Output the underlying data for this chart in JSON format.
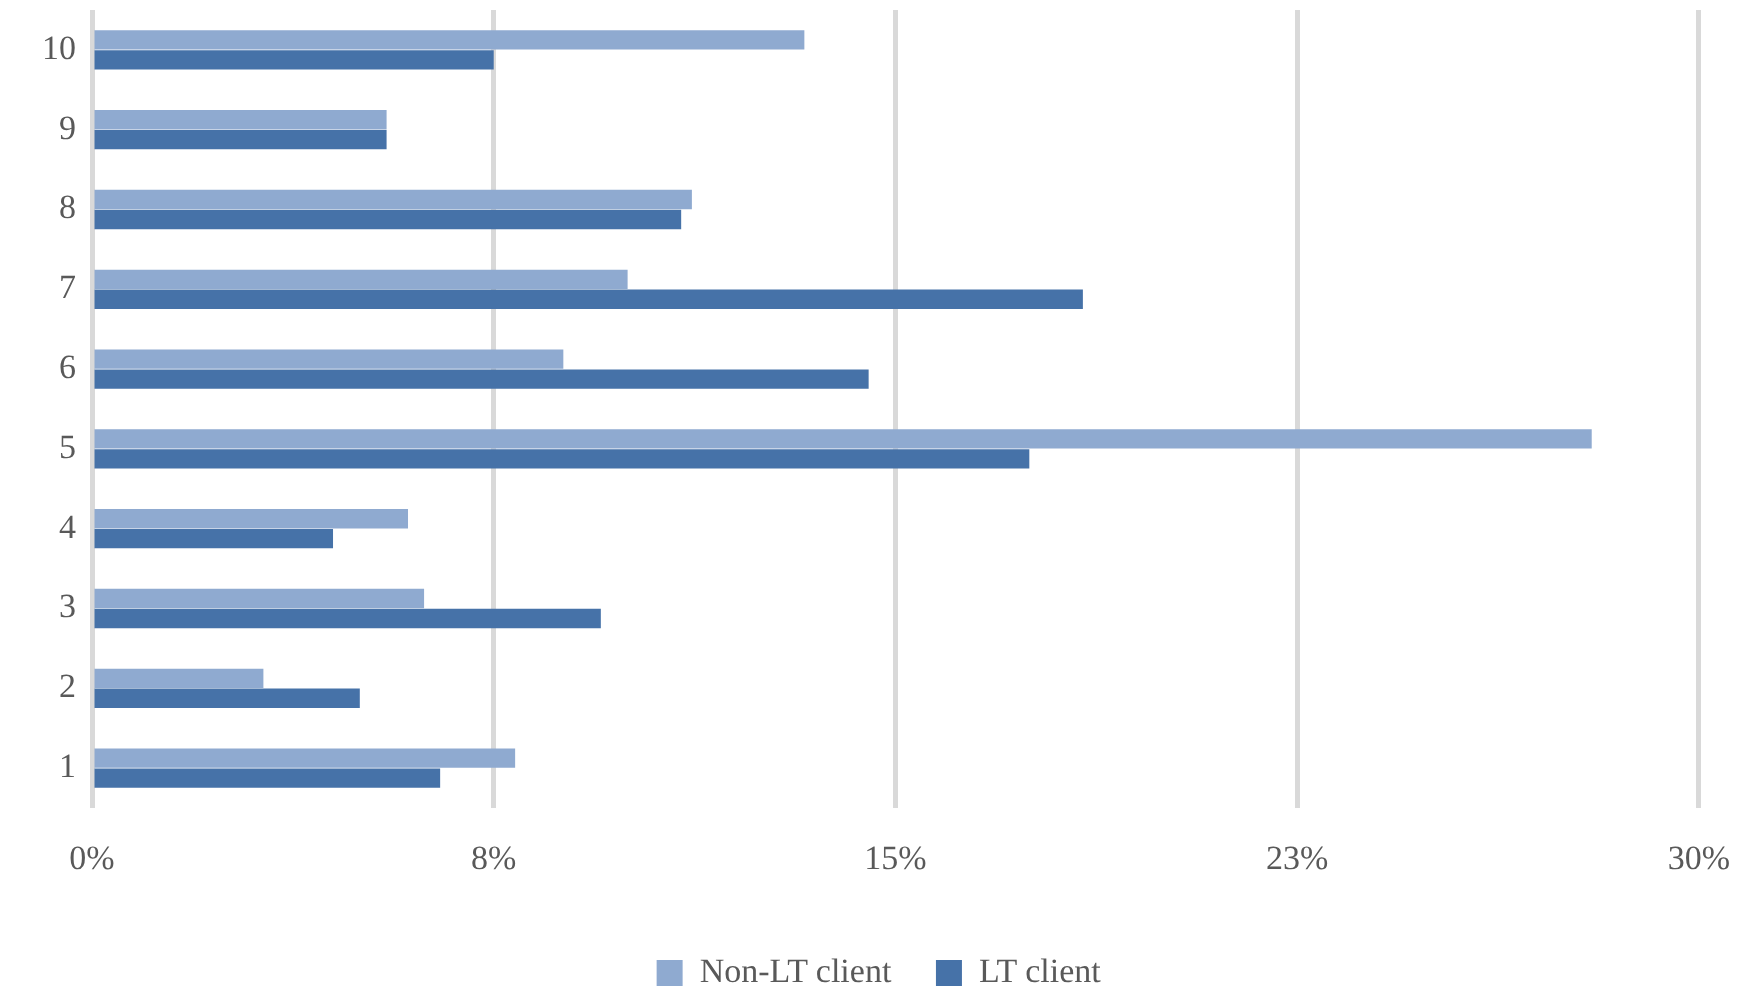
{
  "chart_data": {
    "type": "bar",
    "orientation": "horizontal",
    "categories": [
      "10",
      "9",
      "8",
      "7",
      "6",
      "5",
      "4",
      "3",
      "2",
      "1"
    ],
    "series": [
      {
        "name": "Non-LT client",
        "color": "#8faad0",
        "values": [
          13.3,
          5.5,
          11.2,
          10.0,
          8.8,
          28.0,
          5.9,
          6.2,
          3.2,
          7.9
        ]
      },
      {
        "name": "LT client",
        "color": "#4672a8",
        "values": [
          7.5,
          5.5,
          11.0,
          18.5,
          14.5,
          17.5,
          4.5,
          9.5,
          5.0,
          6.5
        ]
      }
    ],
    "xlim": [
      0,
      30
    ],
    "xticks": [
      {
        "value": 0,
        "label": "0%"
      },
      {
        "value": 7.5,
        "label": "8%"
      },
      {
        "value": 15,
        "label": "15%"
      },
      {
        "value": 22.5,
        "label": "23%"
      },
      {
        "value": 30,
        "label": "30%"
      }
    ],
    "grid": "x",
    "legend": "bottom"
  }
}
